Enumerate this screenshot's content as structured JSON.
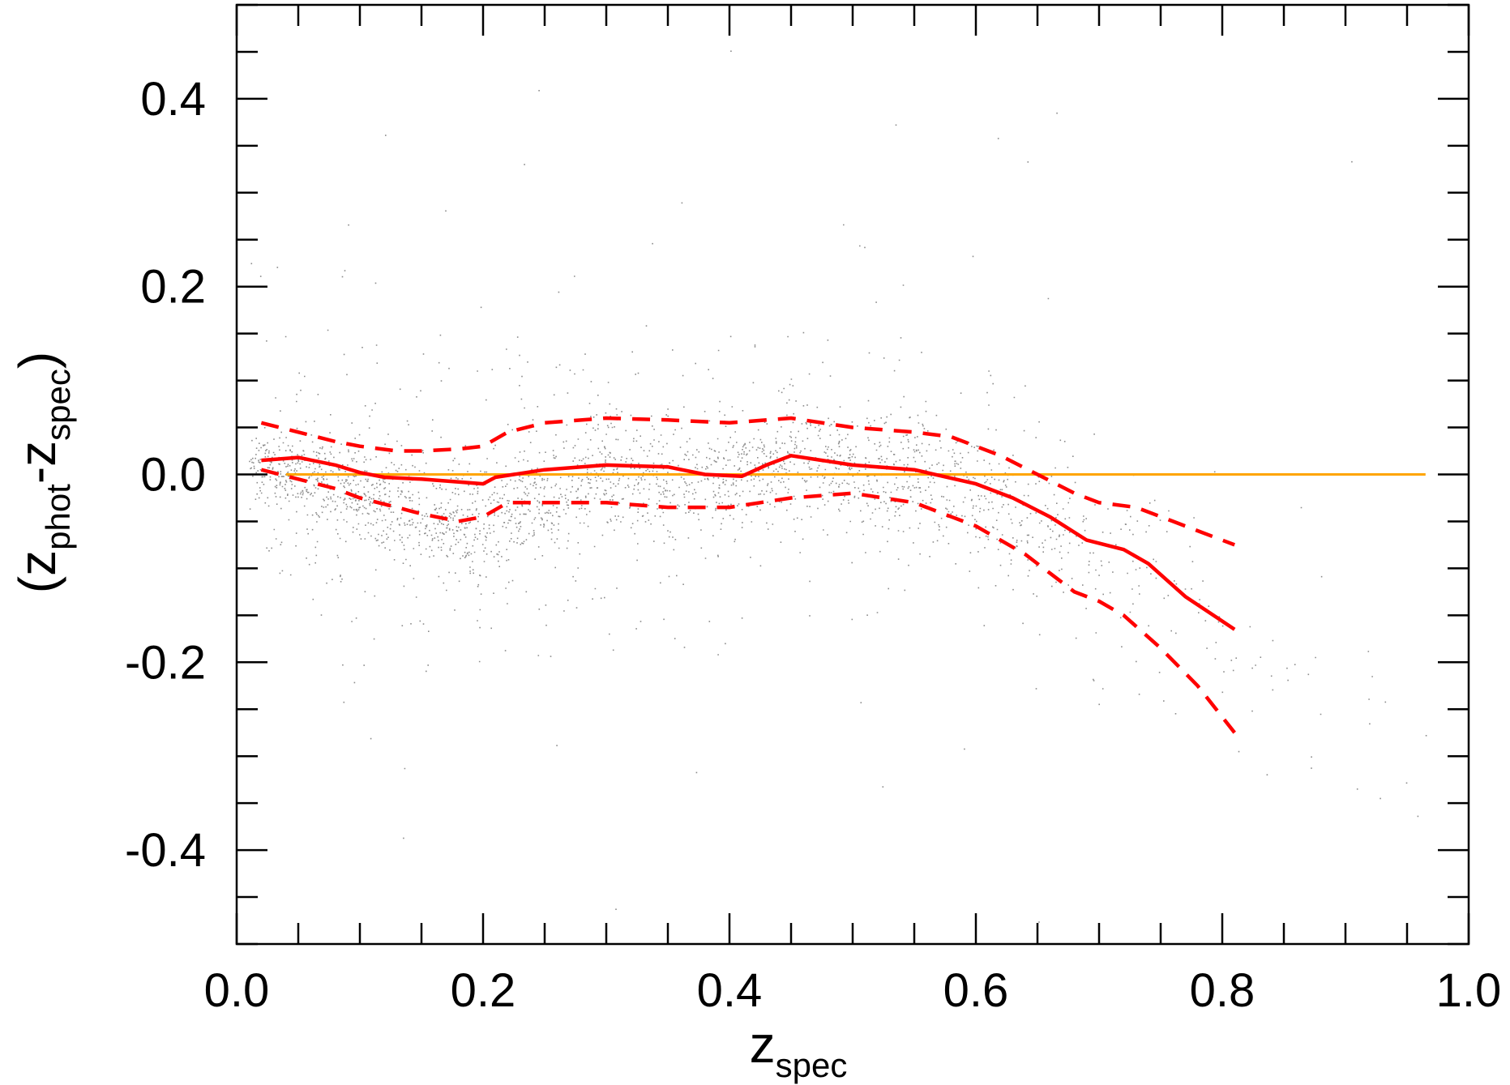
{
  "chart_data": {
    "type": "scatter",
    "title": "",
    "xlabel": {
      "main": "z",
      "sub": "spec"
    },
    "ylabel": {
      "open": "(",
      "a": "z",
      "a_sub": "phot",
      "op": "-",
      "b": "z",
      "b_sub": "spec",
      "close": ")"
    },
    "xlim": [
      0.0,
      1.0
    ],
    "ylim": [
      -0.5,
      0.5
    ],
    "x_ticks": [
      0.0,
      0.2,
      0.4,
      0.6,
      0.8,
      1.0
    ],
    "x_tick_labels": [
      "0.0",
      "0.2",
      "0.4",
      "0.6",
      "0.8",
      "1.0"
    ],
    "x_minor_step": 0.05,
    "y_ticks": [
      -0.4,
      -0.2,
      0.0,
      0.2,
      0.4
    ],
    "y_tick_labels": [
      "-0.4",
      "-0.2",
      "0.0",
      "0.2",
      "0.4"
    ],
    "y_minor_step": 0.05,
    "grid": false,
    "legend": "none",
    "colors": {
      "points": "#000000",
      "median": "#ff0000",
      "bounds": "#ff0000",
      "zero_line": "#ffa500",
      "axes": "#000000"
    },
    "zero_line": {
      "x": [
        0.04,
        0.965
      ],
      "y": 0.0
    },
    "density_ridge": {
      "x": [
        0.01,
        0.05,
        0.1,
        0.15,
        0.2,
        0.25,
        0.3,
        0.35,
        0.4,
        0.45,
        0.5,
        0.55,
        0.6,
        0.65,
        0.7,
        0.75,
        0.8,
        0.85,
        0.9,
        0.95,
        1.0
      ],
      "center": [
        0.01,
        0.0,
        -0.02,
        -0.045,
        -0.06,
        -0.02,
        0.0,
        -0.01,
        0.0,
        0.02,
        0.01,
        0.0,
        -0.02,
        -0.05,
        -0.08,
        -0.12,
        -0.17,
        -0.22,
        -0.27,
        -0.32,
        -0.36
      ],
      "spread": [
        0.03,
        0.04,
        0.045,
        0.05,
        0.055,
        0.05,
        0.05,
        0.05,
        0.05,
        0.05,
        0.05,
        0.055,
        0.055,
        0.06,
        0.065,
        0.07,
        0.075,
        0.08,
        0.085,
        0.09,
        0.09
      ],
      "weight": [
        0.3,
        1.0,
        1.0,
        1.0,
        1.0,
        0.9,
        0.9,
        0.9,
        0.9,
        0.95,
        0.95,
        0.9,
        0.8,
        0.55,
        0.35,
        0.2,
        0.1,
        0.06,
        0.04,
        0.03,
        0.02
      ]
    },
    "series": [
      {
        "style": "solid",
        "x": [
          0.02,
          0.05,
          0.08,
          0.1,
          0.12,
          0.15,
          0.18,
          0.2,
          0.21,
          0.25,
          0.3,
          0.35,
          0.38,
          0.41,
          0.43,
          0.45,
          0.5,
          0.55,
          0.6,
          0.63,
          0.66,
          0.69,
          0.72,
          0.74,
          0.77,
          0.81
        ],
        "y": [
          0.015,
          0.018,
          0.01,
          0.002,
          -0.003,
          -0.005,
          -0.008,
          -0.01,
          -0.003,
          0.005,
          0.01,
          0.008,
          0.0,
          -0.002,
          0.01,
          0.02,
          0.01,
          0.005,
          -0.01,
          -0.025,
          -0.045,
          -0.07,
          -0.08,
          -0.095,
          -0.13,
          -0.165
        ]
      },
      {
        "style": "dashed",
        "x": [
          0.02,
          0.05,
          0.08,
          0.1,
          0.13,
          0.15,
          0.18,
          0.2,
          0.22,
          0.25,
          0.3,
          0.35,
          0.4,
          0.45,
          0.5,
          0.55,
          0.58,
          0.6,
          0.62,
          0.65,
          0.68,
          0.7,
          0.73,
          0.76,
          0.81
        ],
        "y": [
          0.055,
          0.045,
          0.035,
          0.03,
          0.025,
          0.025,
          0.027,
          0.03,
          0.045,
          0.055,
          0.06,
          0.058,
          0.055,
          0.06,
          0.05,
          0.045,
          0.04,
          0.03,
          0.02,
          0.0,
          -0.02,
          -0.03,
          -0.035,
          -0.05,
          -0.075
        ]
      },
      {
        "style": "dashed",
        "x": [
          0.02,
          0.05,
          0.08,
          0.1,
          0.13,
          0.15,
          0.18,
          0.2,
          0.22,
          0.25,
          0.3,
          0.35,
          0.4,
          0.45,
          0.5,
          0.55,
          0.58,
          0.6,
          0.62,
          0.64,
          0.66,
          0.68,
          0.7,
          0.72,
          0.75,
          0.78,
          0.81
        ],
        "y": [
          0.005,
          -0.005,
          -0.015,
          -0.025,
          -0.035,
          -0.042,
          -0.05,
          -0.045,
          -0.03,
          -0.03,
          -0.03,
          -0.035,
          -0.035,
          -0.025,
          -0.02,
          -0.03,
          -0.045,
          -0.055,
          -0.07,
          -0.085,
          -0.105,
          -0.125,
          -0.135,
          -0.15,
          -0.185,
          -0.225,
          -0.275
        ]
      }
    ]
  }
}
